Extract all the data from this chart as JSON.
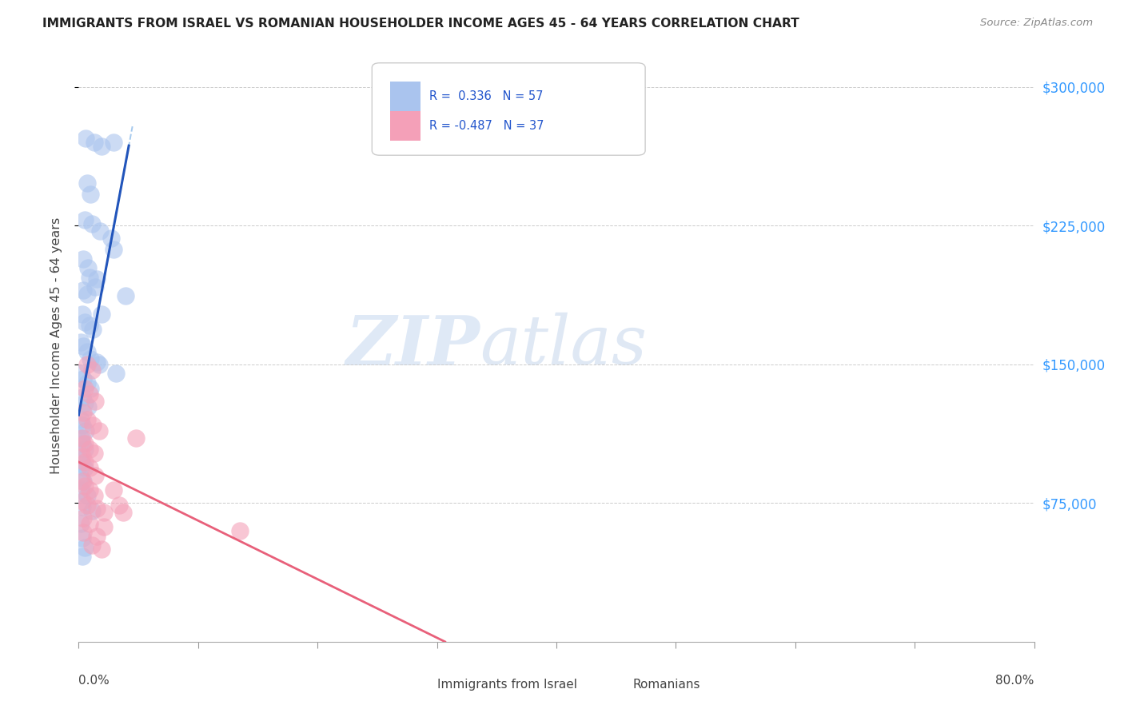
{
  "title": "IMMIGRANTS FROM ISRAEL VS ROMANIAN HOUSEHOLDER INCOME AGES 45 - 64 YEARS CORRELATION CHART",
  "source": "Source: ZipAtlas.com",
  "ylabel": "Householder Income Ages 45 - 64 years",
  "ytick_labels": [
    "$75,000",
    "$150,000",
    "$225,000",
    "$300,000"
  ],
  "ytick_values": [
    75000,
    150000,
    225000,
    300000
  ],
  "israel_color": "#aac4ee",
  "romanian_color": "#f4a0b8",
  "israel_line_color": "#2255bb",
  "romanian_line_color": "#e8607a",
  "israel_dash_color": "#88b8e8",
  "watermark_zip": "ZIP",
  "watermark_atlas": "atlas",
  "israel_points": [
    [
      0.6,
      272000
    ],
    [
      1.3,
      270000
    ],
    [
      1.9,
      268000
    ],
    [
      2.9,
      270000
    ],
    [
      0.7,
      248000
    ],
    [
      1.0,
      242000
    ],
    [
      0.5,
      228000
    ],
    [
      1.1,
      226000
    ],
    [
      1.8,
      222000
    ],
    [
      2.7,
      218000
    ],
    [
      0.4,
      207000
    ],
    [
      0.8,
      202000
    ],
    [
      1.5,
      196000
    ],
    [
      0.4,
      190000
    ],
    [
      0.7,
      188000
    ],
    [
      1.4,
      192000
    ],
    [
      0.3,
      177000
    ],
    [
      0.5,
      173000
    ],
    [
      0.9,
      171000
    ],
    [
      1.2,
      169000
    ],
    [
      0.2,
      162000
    ],
    [
      0.4,
      160000
    ],
    [
      0.7,
      157000
    ],
    [
      1.0,
      153000
    ],
    [
      1.5,
      151000
    ],
    [
      0.2,
      145000
    ],
    [
      0.4,
      142000
    ],
    [
      0.7,
      140000
    ],
    [
      1.0,
      137000
    ],
    [
      0.3,
      132000
    ],
    [
      0.5,
      129000
    ],
    [
      0.8,
      127000
    ],
    [
      0.2,
      120000
    ],
    [
      0.3,
      117000
    ],
    [
      0.6,
      114000
    ],
    [
      0.2,
      110000
    ],
    [
      0.3,
      107000
    ],
    [
      0.5,
      104000
    ],
    [
      0.2,
      98000
    ],
    [
      0.3,
      96000
    ],
    [
      0.5,
      94000
    ],
    [
      0.2,
      89000
    ],
    [
      0.4,
      87000
    ],
    [
      0.2,
      82000
    ],
    [
      0.7,
      79000
    ],
    [
      0.3,
      73000
    ],
    [
      1.1,
      71000
    ],
    [
      0.2,
      64000
    ],
    [
      0.3,
      56000
    ],
    [
      0.5,
      51000
    ],
    [
      0.3,
      46000
    ],
    [
      0.9,
      197000
    ],
    [
      1.9,
      177000
    ],
    [
      2.9,
      212000
    ],
    [
      3.9,
      187000
    ],
    [
      1.7,
      150000
    ],
    [
      3.1,
      145000
    ]
  ],
  "romanian_points": [
    [
      0.7,
      150000
    ],
    [
      1.1,
      147000
    ],
    [
      0.5,
      137000
    ],
    [
      0.9,
      134000
    ],
    [
      1.4,
      130000
    ],
    [
      0.4,
      124000
    ],
    [
      0.7,
      120000
    ],
    [
      1.2,
      117000
    ],
    [
      1.7,
      114000
    ],
    [
      0.3,
      110000
    ],
    [
      0.5,
      107000
    ],
    [
      0.9,
      104000
    ],
    [
      1.3,
      102000
    ],
    [
      0.3,
      100000
    ],
    [
      0.5,
      97000
    ],
    [
      0.9,
      94000
    ],
    [
      1.4,
      90000
    ],
    [
      0.3,
      87000
    ],
    [
      0.5,
      84000
    ],
    [
      0.9,
      82000
    ],
    [
      1.3,
      79000
    ],
    [
      0.3,
      76000
    ],
    [
      0.7,
      74000
    ],
    [
      1.5,
      72000
    ],
    [
      2.1,
      70000
    ],
    [
      0.4,
      67000
    ],
    [
      0.9,
      64000
    ],
    [
      2.1,
      62000
    ],
    [
      0.4,
      59000
    ],
    [
      1.5,
      57000
    ],
    [
      1.1,
      52000
    ],
    [
      1.9,
      50000
    ],
    [
      4.8,
      110000
    ],
    [
      2.9,
      82000
    ],
    [
      3.4,
      74000
    ],
    [
      3.7,
      70000
    ],
    [
      13.5,
      60000
    ]
  ],
  "xlim": [
    0,
    80
  ],
  "ylim": [
    0,
    320000
  ],
  "background_color": "#ffffff",
  "grid_color": "#cccccc"
}
